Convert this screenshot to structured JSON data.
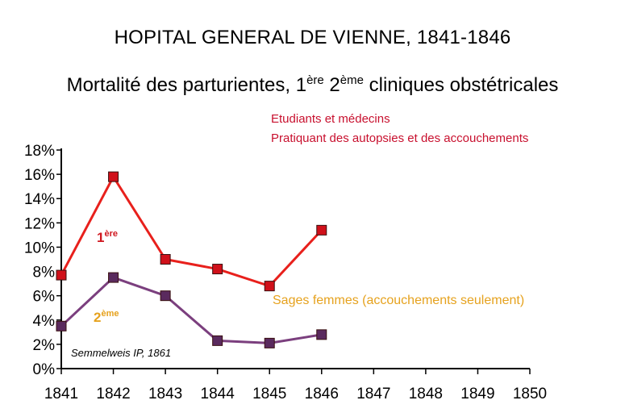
{
  "title": "HOPITAL GENERAL DE VIENNE, 1841-1846",
  "subtitle": {
    "prefix": "Mortalité des parturientes, 1",
    "sup1": "ère",
    "mid": " 2",
    "sup2": "ème",
    "suffix": " cliniques obstétricales"
  },
  "annotations": {
    "students_line1": "Etudiants et médecins",
    "students_line2": "Pratiquant des autopsies et des accouchements",
    "midwives": "Sages femmes (accouchements seulement)",
    "source": "Semmelweis IP,  1861"
  },
  "series_labels": {
    "first_num": "1",
    "first_sup": "ère",
    "second_num": "2",
    "second_sup": "ème"
  },
  "colors": {
    "first_clinic": "#e8201c",
    "first_marker": "#d0101a",
    "second_clinic": "#7b3f7e",
    "second_marker": "#5a2a5e",
    "students_text": "#c8102e",
    "midwives_text": "#e6a21e"
  },
  "chart_data": {
    "type": "line",
    "x": [
      1841,
      1842,
      1843,
      1844,
      1845,
      1846,
      1847,
      1848,
      1849,
      1850
    ],
    "x_tick_labels": [
      "1841",
      "1842",
      "1843",
      "1844",
      "1845",
      "1846",
      "1847",
      "1848",
      "1849",
      "1850"
    ],
    "y_tick_values": [
      0,
      2,
      4,
      6,
      8,
      10,
      12,
      14,
      16,
      18
    ],
    "y_tick_labels": [
      "0%",
      "2%",
      "4%",
      "6%",
      "8%",
      "10%",
      "12%",
      "14%",
      "16%",
      "18%"
    ],
    "ylim": [
      0,
      18
    ],
    "xlim": [
      1841,
      1850
    ],
    "grid": false,
    "series": [
      {
        "key": "first",
        "x": [
          1841,
          1842,
          1843,
          1844,
          1845,
          1846
        ],
        "values": [
          7.7,
          15.8,
          9.0,
          8.2,
          6.8,
          11.4
        ]
      },
      {
        "key": "second",
        "x": [
          1841,
          1842,
          1843,
          1844,
          1845,
          1846
        ],
        "values": [
          3.5,
          7.5,
          6.0,
          2.3,
          2.1,
          2.8
        ]
      }
    ]
  }
}
